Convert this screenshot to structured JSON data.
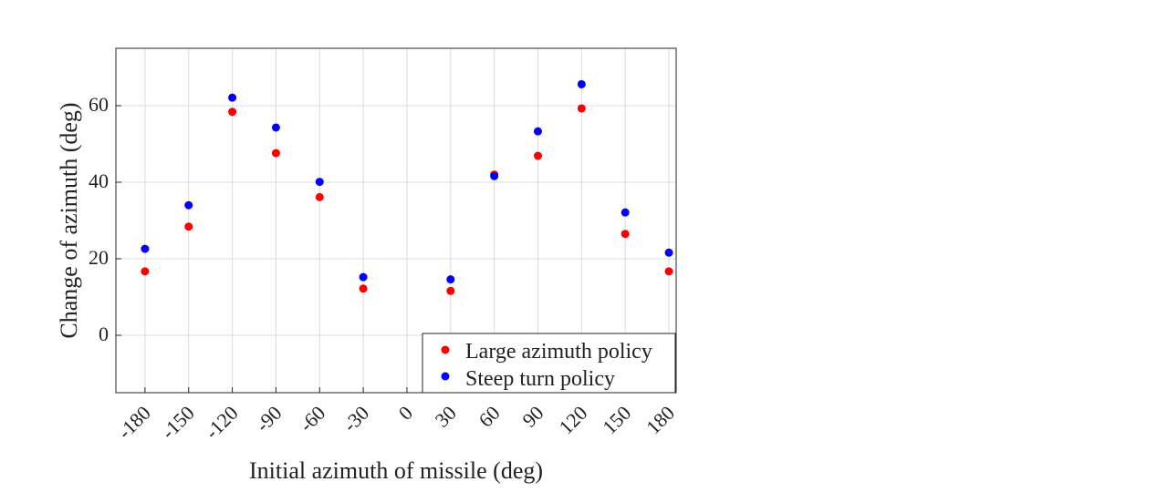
{
  "chart_data": {
    "type": "scatter",
    "xlabel": "Initial azimuth of missile (deg)",
    "ylabel": "Change of azimuth (deg)",
    "xticks": [
      -180,
      -150,
      -120,
      -90,
      -60,
      -30,
      0,
      30,
      60,
      90,
      120,
      150,
      180
    ],
    "xtick_labels": [
      "-180",
      "-150",
      "-120",
      "-90",
      "-60",
      "-30",
      "0",
      "30",
      "60",
      "90",
      "120",
      "150",
      "180"
    ],
    "yticks": [
      0,
      20,
      40,
      60
    ],
    "ytick_labels": [
      "0",
      "20",
      "40",
      "60"
    ],
    "xlim": [
      -200,
      185
    ],
    "ylim": [
      -15,
      75
    ],
    "grid": true,
    "legend_position": "bottom-right",
    "series": [
      {
        "name": "Large azimuth policy",
        "color": "#ff0000",
        "points": [
          [
            -180,
            16.7
          ],
          [
            -150,
            28.4
          ],
          [
            -120,
            58.4
          ],
          [
            -90,
            47.6
          ],
          [
            -60,
            36.1
          ],
          [
            -30,
            12.2
          ],
          [
            30,
            11.6
          ],
          [
            60,
            42.0
          ],
          [
            90,
            46.9
          ],
          [
            120,
            59.3
          ],
          [
            150,
            26.5
          ],
          [
            180,
            16.7
          ]
        ]
      },
      {
        "name": "Steep turn policy",
        "color": "#0000ff",
        "points": [
          [
            -180,
            22.6
          ],
          [
            -150,
            34.0
          ],
          [
            -120,
            62.1
          ],
          [
            -90,
            54.3
          ],
          [
            -60,
            40.1
          ],
          [
            -30,
            15.2
          ],
          [
            30,
            14.6
          ],
          [
            60,
            41.6
          ],
          [
            90,
            53.3
          ],
          [
            120,
            65.6
          ],
          [
            150,
            32.1
          ],
          [
            180,
            21.6
          ]
        ]
      }
    ]
  }
}
